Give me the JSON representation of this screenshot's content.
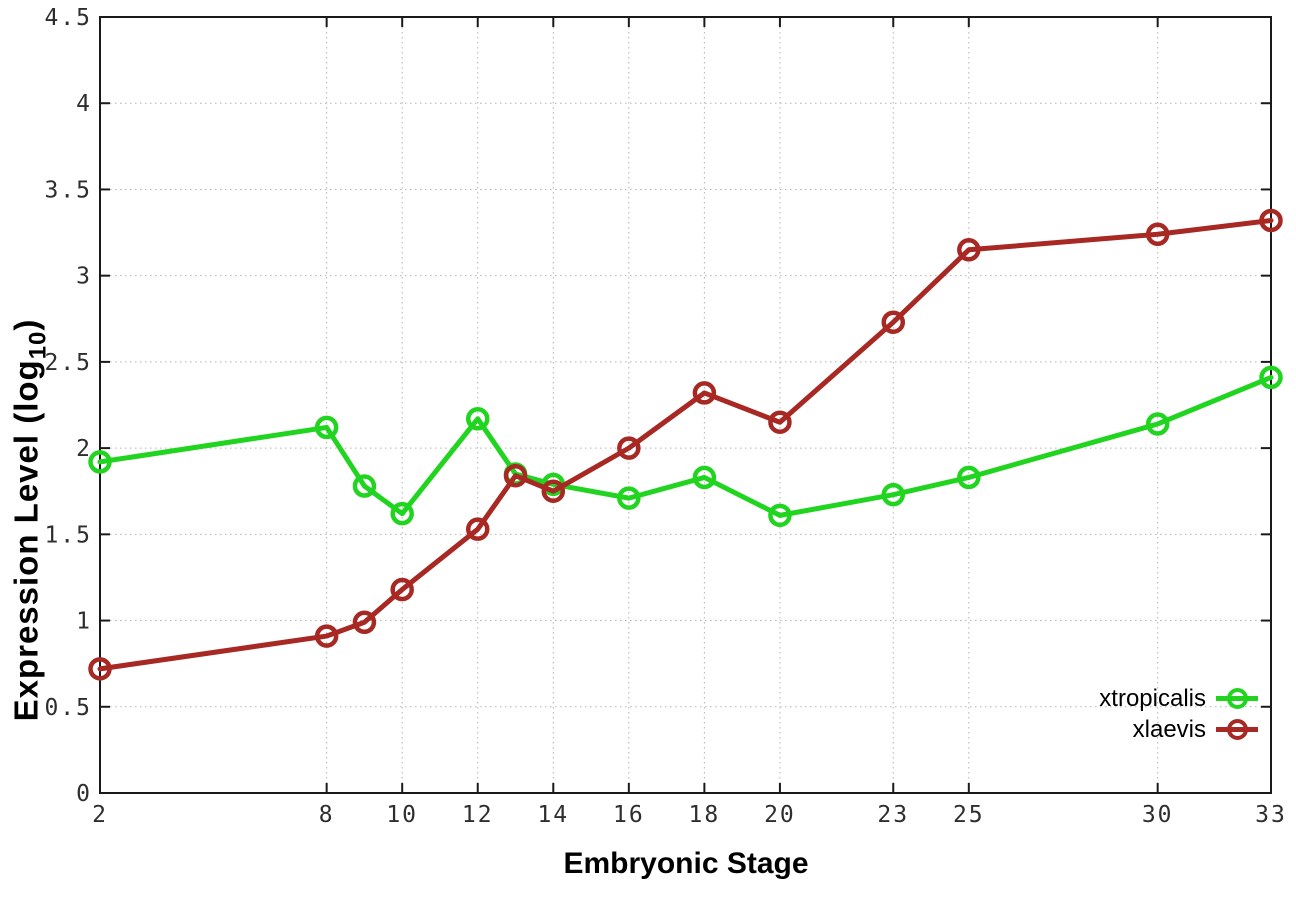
{
  "chart_data": {
    "type": "line",
    "title": "",
    "xlabel": "Embryonic Stage",
    "ylabel": "Expression Level (log10)",
    "ylabel_parts": {
      "main": "Expression Level (log",
      "sub": "10",
      "close": ")"
    },
    "x": [
      2,
      8,
      9,
      10,
      12,
      13,
      14,
      16,
      18,
      20,
      23,
      25,
      30,
      33
    ],
    "xlim": [
      2,
      33
    ],
    "ylim": [
      0,
      4.5
    ],
    "x_tick_values": [
      2,
      8,
      10,
      12,
      14,
      16,
      18,
      20,
      23,
      25,
      30,
      33
    ],
    "x_tick_labels": [
      "2",
      "8",
      "10",
      "12",
      "14",
      "16",
      "18",
      "20",
      "23",
      "25",
      "30",
      "33"
    ],
    "y_tick_values": [
      0,
      0.5,
      1,
      1.5,
      2,
      2.5,
      3,
      3.5,
      4,
      4.5
    ],
    "y_tick_labels": [
      "0",
      "0.5",
      "1",
      "1.5",
      "2",
      "2.5",
      "3",
      "3.5",
      "4",
      "4.5"
    ],
    "grid": true,
    "legend_position": "inside-bottom-right",
    "series": [
      {
        "name": "xtropicalis",
        "color": "#20d420",
        "values": [
          1.92,
          2.12,
          1.78,
          1.62,
          2.17,
          1.85,
          1.79,
          1.71,
          1.83,
          1.61,
          1.73,
          1.83,
          2.14,
          2.41
        ]
      },
      {
        "name": "xlaevis",
        "color": "#a82823",
        "values": [
          0.72,
          0.91,
          0.99,
          1.18,
          1.53,
          1.84,
          1.75,
          2.0,
          2.32,
          2.15,
          2.73,
          3.15,
          3.24,
          3.32
        ]
      }
    ]
  },
  "style_colors": {
    "axis": "#1a1a1a",
    "grid": "#b3b3b3",
    "tick_label": "#2e2e2e"
  }
}
